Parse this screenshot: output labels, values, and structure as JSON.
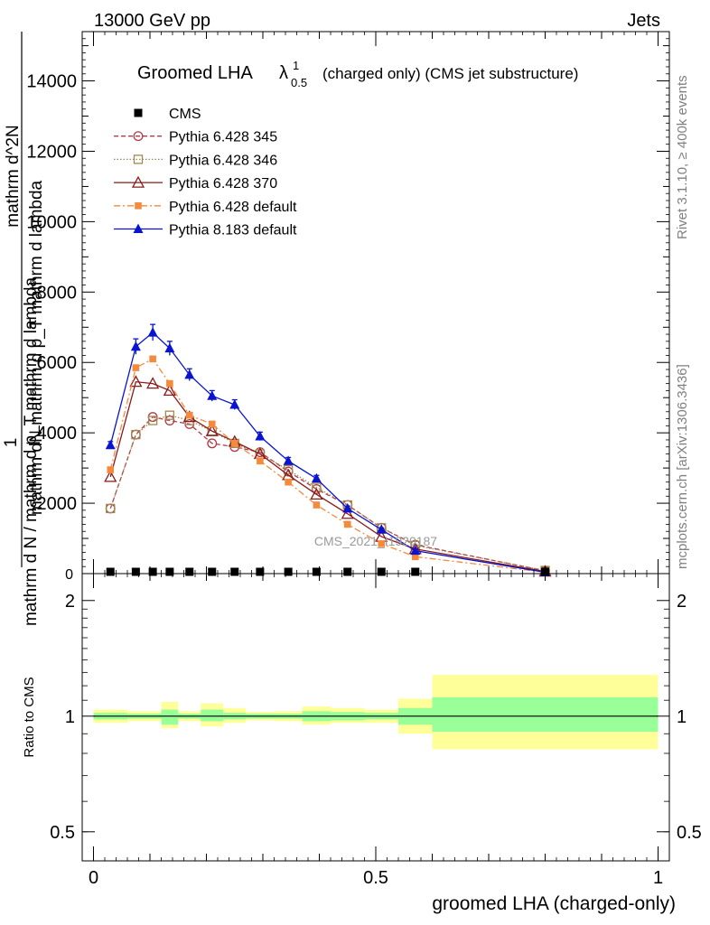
{
  "header": {
    "energy_label": "13000 GeV pp",
    "process_label": "Jets"
  },
  "side_labels": {
    "rivet": "Rivet 3.1.10, ≥ 400k events",
    "mcplots": "mcplots.cern.ch [arXiv:1306.3436]"
  },
  "watermark": "CMS_2021_I1920187",
  "colors": {
    "cms": "#000000",
    "p345": "#b03a48",
    "p346": "#a08a50",
    "p370": "#8b1a1a",
    "p6def": "#f58a3c",
    "p8def": "#0a14d0",
    "band_inner": "#99ff99",
    "band_outer": "#ffff99"
  },
  "chart_data": {
    "type": "line",
    "title_main": "Groomed LHA",
    "title_symbol": "λ",
    "title_sup": "1",
    "title_sub": "0.5",
    "title_rest": "(charged only) (CMS jet substructure)",
    "xlabel": "groomed LHA (charged-only)",
    "ylabel_lines": [
      "mathrm d N / mathrm d p_T mathrm d lambda",
      "1",
      "mathrm d^2N",
      "mathrm d N / mathrm d p_T mathrm d lambda"
    ],
    "ylabel_top": "mathrm d^2N",
    "ylabel_mid": "mathrm dN mathrm d p_T mathrm d lambda",
    "ylabel_num": "1",
    "ylabel_den": "mathrm d N / mathrm d p_T mathrm d lambda",
    "ratio_ylabel": "Ratio to CMS",
    "xlim": [
      -0.02,
      1.02
    ],
    "ylim": [
      0,
      15400
    ],
    "ratio_ylim": [
      0.42,
      2.35
    ],
    "x_ticks": [
      0,
      0.5,
      1
    ],
    "x_tick_labels": [
      "0",
      "0.5",
      "1"
    ],
    "y_ticks": [
      2000,
      4000,
      6000,
      8000,
      10000,
      12000,
      14000
    ],
    "y_tick_labels": [
      "2000",
      "4000",
      "6000",
      "8000",
      "10000",
      "12000",
      "14000"
    ],
    "y_zero_label": "0",
    "ratio_ticks": [
      0.5,
      1,
      2
    ],
    "ratio_tick_labels": [
      "0.5",
      "1",
      "2"
    ],
    "x": [
      0.03,
      0.075,
      0.105,
      0.135,
      0.17,
      0.21,
      0.25,
      0.295,
      0.345,
      0.395,
      0.45,
      0.51,
      0.57,
      0.8
    ],
    "series": [
      {
        "name": "CMS",
        "key": "cms",
        "marker": "square-filled",
        "line": "none",
        "values": [
          0,
          0,
          0,
          0,
          0,
          0,
          0,
          0,
          0,
          0,
          0,
          0,
          0,
          0
        ]
      },
      {
        "name": "Pythia 6.428 345",
        "key": "p345",
        "marker": "circle-open",
        "line": "dashed",
        "values": [
          1850,
          3950,
          4450,
          4350,
          4250,
          3700,
          3600,
          3450,
          2900,
          2400,
          1950,
          1300,
          820,
          80
        ]
      },
      {
        "name": "Pythia 6.428 346",
        "key": "p346",
        "marker": "square-open",
        "line": "dotted",
        "values": [
          1850,
          3950,
          4350,
          4500,
          4350,
          4050,
          3700,
          3400,
          2950,
          2450,
          1950,
          1300,
          800,
          90
        ]
      },
      {
        "name": "Pythia 6.428 370",
        "key": "p370",
        "marker": "triangle-open",
        "line": "solid",
        "values": [
          2750,
          5450,
          5400,
          5200,
          4450,
          4050,
          3750,
          3400,
          2800,
          2250,
          1700,
          1050,
          700,
          60
        ]
      },
      {
        "name": "Pythia 6.428 default",
        "key": "p6def",
        "marker": "square-filled-small",
        "line": "dashdot",
        "values": [
          2950,
          5850,
          6100,
          5400,
          4500,
          4250,
          3700,
          3200,
          2600,
          1950,
          1400,
          850,
          480,
          40
        ]
      },
      {
        "name": "Pythia 8.183 default",
        "key": "p8def",
        "marker": "triangle-filled",
        "line": "solid",
        "values": [
          3650,
          6450,
          6850,
          6400,
          5650,
          5050,
          4800,
          3900,
          3200,
          2700,
          1850,
          1250,
          650,
          40
        ],
        "errors": [
          100,
          220,
          230,
          200,
          170,
          150,
          140,
          120,
          100,
          90,
          70,
          50,
          40,
          10
        ]
      }
    ],
    "ratio_bins": [
      {
        "x0": 0.0,
        "x1": 0.06,
        "inner": [
          0.98,
          1.02
        ],
        "outer": [
          0.96,
          1.04
        ]
      },
      {
        "x0": 0.06,
        "x1": 0.09,
        "inner": [
          0.985,
          1.015
        ],
        "outer": [
          0.97,
          1.03
        ]
      },
      {
        "x0": 0.09,
        "x1": 0.12,
        "inner": [
          0.985,
          1.015
        ],
        "outer": [
          0.97,
          1.03
        ]
      },
      {
        "x0": 0.12,
        "x1": 0.15,
        "inner": [
          0.95,
          1.04
        ],
        "outer": [
          0.93,
          1.09
        ]
      },
      {
        "x0": 0.15,
        "x1": 0.19,
        "inner": [
          0.985,
          1.015
        ],
        "outer": [
          0.97,
          1.03
        ]
      },
      {
        "x0": 0.19,
        "x1": 0.23,
        "inner": [
          0.97,
          1.04
        ],
        "outer": [
          0.94,
          1.08
        ]
      },
      {
        "x0": 0.23,
        "x1": 0.27,
        "inner": [
          0.98,
          1.02
        ],
        "outer": [
          0.96,
          1.05
        ]
      },
      {
        "x0": 0.27,
        "x1": 0.32,
        "inner": [
          0.985,
          1.015
        ],
        "outer": [
          0.975,
          1.025
        ]
      },
      {
        "x0": 0.32,
        "x1": 0.37,
        "inner": [
          0.985,
          1.015
        ],
        "outer": [
          0.97,
          1.03
        ]
      },
      {
        "x0": 0.37,
        "x1": 0.42,
        "inner": [
          0.97,
          1.03
        ],
        "outer": [
          0.95,
          1.06
        ]
      },
      {
        "x0": 0.42,
        "x1": 0.48,
        "inner": [
          0.975,
          1.025
        ],
        "outer": [
          0.96,
          1.05
        ]
      },
      {
        "x0": 0.48,
        "x1": 0.54,
        "inner": [
          0.98,
          1.02
        ],
        "outer": [
          0.96,
          1.04
        ]
      },
      {
        "x0": 0.54,
        "x1": 0.6,
        "inner": [
          0.95,
          1.05
        ],
        "outer": [
          0.9,
          1.11
        ]
      },
      {
        "x0": 0.6,
        "x1": 1.0,
        "inner": [
          0.91,
          1.12
        ],
        "outer": [
          0.82,
          1.28
        ]
      }
    ]
  }
}
